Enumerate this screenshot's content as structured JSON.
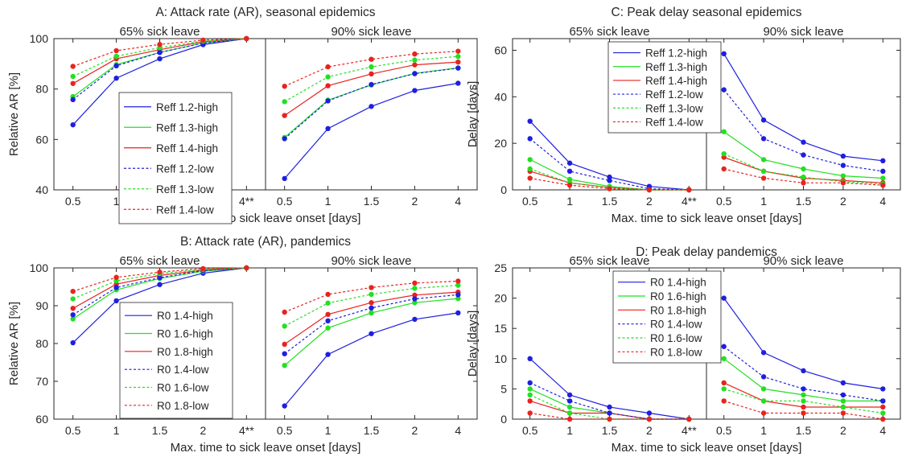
{
  "colors": {
    "blue": "#1f1fe0",
    "green": "#22e022",
    "red": "#e8231f"
  },
  "chart_data": [
    {
      "id": "A",
      "type": "line",
      "title": "A:  Attack rate (AR), seasonal epidemics",
      "xlabel": "Max. time to sick leave onset [days]",
      "ylabel": "Relative AR [%]",
      "ylim": [
        40,
        100
      ],
      "yticks": [
        "40",
        "60",
        "80",
        "100"
      ],
      "grid": false,
      "legend_position": "bottom-right of left panel",
      "panels": [
        {
          "label": "65% sick leave",
          "x_ticks": [
            "0.5",
            "1",
            "1.5",
            "2",
            "4**"
          ],
          "series": [
            {
              "name": "Reff 1.2-high",
              "color": "blue",
              "style": "solid",
              "values": [
                65.8,
                84.3,
                92.0,
                97.6,
                100
              ]
            },
            {
              "name": "Reff 1.3-high",
              "color": "green",
              "style": "solid",
              "values": [
                77.0,
                89.7,
                94.5,
                98.3,
                100
              ]
            },
            {
              "name": "Reff 1.4-high",
              "color": "red",
              "style": "solid",
              "values": [
                82.2,
                92.0,
                95.6,
                98.8,
                100
              ]
            },
            {
              "name": "Reff 1.2-low",
              "color": "blue",
              "style": "dashed",
              "values": [
                75.8,
                89.2,
                94.5,
                98.2,
                100
              ]
            },
            {
              "name": "Reff 1.3-low",
              "color": "green",
              "style": "dashed",
              "values": [
                85.0,
                93.0,
                96.4,
                99.0,
                100
              ]
            },
            {
              "name": "Reff 1.4-low",
              "color": "red",
              "style": "dashed",
              "values": [
                89.0,
                95.2,
                97.7,
                99.4,
                100
              ]
            }
          ]
        },
        {
          "label": "90% sick leave",
          "x_ticks": [
            "0.5",
            "1",
            "1.5",
            "2",
            "4"
          ],
          "series": [
            {
              "name": "Reff 1.2-high",
              "color": "blue",
              "style": "solid",
              "values": [
                44.5,
                64.3,
                73.1,
                79.4,
                82.3
              ]
            },
            {
              "name": "Reff 1.3-high",
              "color": "green",
              "style": "solid",
              "values": [
                60.8,
                75.6,
                81.6,
                86.2,
                88.4
              ]
            },
            {
              "name": "Reff 1.4-high",
              "color": "red",
              "style": "solid",
              "values": [
                69.5,
                81.3,
                86.0,
                89.6,
                90.7
              ]
            },
            {
              "name": "Reff 1.2-low",
              "color": "blue",
              "style": "dashed",
              "values": [
                60.3,
                75.3,
                81.8,
                86.1,
                88.3
              ]
            },
            {
              "name": "Reff 1.3-low",
              "color": "green",
              "style": "dashed",
              "values": [
                75.0,
                84.8,
                88.8,
                91.5,
                92.9
              ]
            },
            {
              "name": "Reff 1.4-low",
              "color": "red",
              "style": "dashed",
              "values": [
                81.1,
                88.8,
                91.8,
                93.9,
                95.0
              ]
            }
          ]
        }
      ]
    },
    {
      "id": "C",
      "type": "line",
      "title": "C:  Peak delay seasonal epidemics",
      "xlabel": "Max. time to sick leave onset [days]",
      "ylabel": "Delay [days]",
      "ylim": [
        0,
        65
      ],
      "yticks": [
        "0",
        "20",
        "40",
        "60"
      ],
      "grid": false,
      "legend_position": "top-right of left panel",
      "panels": [
        {
          "label": "65% sick leave",
          "x_ticks": [
            "0.5",
            "1",
            "1.5",
            "2",
            "4**"
          ],
          "series": [
            {
              "name": "Reff 1.2-high",
              "color": "blue",
              "style": "solid",
              "values": [
                29.5,
                11.5,
                5.5,
                1.5,
                0
              ]
            },
            {
              "name": "Reff 1.3-high",
              "color": "green",
              "style": "solid",
              "values": [
                13.0,
                4.5,
                1.5,
                0,
                0
              ]
            },
            {
              "name": "Reff 1.4-high",
              "color": "red",
              "style": "solid",
              "values": [
                8.0,
                3.0,
                1.0,
                0,
                0
              ]
            },
            {
              "name": "Reff 1.2-low",
              "color": "blue",
              "style": "dashed",
              "values": [
                22.0,
                8.0,
                4.0,
                0.5,
                0
              ]
            },
            {
              "name": "Reff 1.3-low",
              "color": "green",
              "style": "dashed",
              "values": [
                9.0,
                3.0,
                1.0,
                0,
                0
              ]
            },
            {
              "name": "Reff 1.4-low",
              "color": "red",
              "style": "dashed",
              "values": [
                5.0,
                2.0,
                0.5,
                0,
                0
              ]
            }
          ]
        },
        {
          "label": "90% sick leave",
          "x_ticks": [
            "0.5",
            "1",
            "1.5",
            "2",
            "4"
          ],
          "series": [
            {
              "name": "Reff 1.2-high",
              "color": "blue",
              "style": "solid",
              "values": [
                58.5,
                30.0,
                20.5,
                14.5,
                12.5
              ]
            },
            {
              "name": "Reff 1.3-high",
              "color": "green",
              "style": "solid",
              "values": [
                25.0,
                13.0,
                9.0,
                6.0,
                5.0
              ]
            },
            {
              "name": "Reff 1.4-high",
              "color": "red",
              "style": "solid",
              "values": [
                14.0,
                8.0,
                5.0,
                4.0,
                3.0
              ]
            },
            {
              "name": "Reff 1.2-low",
              "color": "blue",
              "style": "dashed",
              "values": [
                43.0,
                22.0,
                15.0,
                10.5,
                8.0
              ]
            },
            {
              "name": "Reff 1.3-low",
              "color": "green",
              "style": "dashed",
              "values": [
                15.5,
                8.0,
                5.5,
                3.5,
                2.5
              ]
            },
            {
              "name": "Reff 1.4-low",
              "color": "red",
              "style": "dashed",
              "values": [
                9.0,
                5.0,
                3.0,
                3.0,
                2.0
              ]
            }
          ]
        }
      ]
    },
    {
      "id": "B",
      "type": "line",
      "title": "B:  Attack rate (AR), pandemics",
      "xlabel": "Max. time to sick leave onset [days]",
      "ylabel": "Relative AR [%]",
      "ylim": [
        60,
        100
      ],
      "yticks": [
        "60",
        "70",
        "80",
        "90",
        "100"
      ],
      "grid": false,
      "legend_position": "bottom-right of left panel",
      "panels": [
        {
          "label": "65% sick leave",
          "x_ticks": [
            "0.5",
            "1",
            "1.5",
            "2",
            "4**"
          ],
          "series": [
            {
              "name": "R0 1.4-high",
              "color": "blue",
              "style": "solid",
              "values": [
                80.2,
                91.3,
                95.6,
                98.6,
                100
              ]
            },
            {
              "name": "R0 1.6-high",
              "color": "green",
              "style": "solid",
              "values": [
                86.5,
                94.2,
                97.2,
                99.1,
                100
              ]
            },
            {
              "name": "R0 1.8-high",
              "color": "red",
              "style": "solid",
              "values": [
                89.3,
                95.7,
                98.0,
                99.4,
                100
              ]
            },
            {
              "name": "R0 1.4-low",
              "color": "blue",
              "style": "dashed",
              "values": [
                87.6,
                94.8,
                97.4,
                99.3,
                100
              ]
            },
            {
              "name": "R0 1.6-low",
              "color": "green",
              "style": "dashed",
              "values": [
                91.8,
                96.6,
                98.5,
                99.6,
                100
              ]
            },
            {
              "name": "R0 1.8-low",
              "color": "red",
              "style": "dashed",
              "values": [
                93.8,
                97.5,
                98.9,
                99.8,
                100
              ]
            }
          ]
        },
        {
          "label": "90% sick leave",
          "x_ticks": [
            "0.5",
            "1",
            "1.5",
            "2",
            "4"
          ],
          "series": [
            {
              "name": "R0 1.4-high",
              "color": "blue",
              "style": "solid",
              "values": [
                63.5,
                77.1,
                82.6,
                86.4,
                88.1
              ]
            },
            {
              "name": "R0 1.6-high",
              "color": "green",
              "style": "solid",
              "values": [
                74.2,
                84.1,
                88.1,
                90.8,
                91.9
              ]
            },
            {
              "name": "R0 1.8-high",
              "color": "red",
              "style": "solid",
              "values": [
                79.8,
                87.7,
                90.8,
                92.8,
                93.6
              ]
            },
            {
              "name": "R0 1.4-low",
              "color": "blue",
              "style": "dashed",
              "values": [
                77.3,
                86.0,
                89.4,
                91.8,
                92.9
              ]
            },
            {
              "name": "R0 1.6-low",
              "color": "green",
              "style": "dashed",
              "values": [
                84.6,
                90.7,
                93.0,
                94.6,
                95.4
              ]
            },
            {
              "name": "R0 1.8-low",
              "color": "red",
              "style": "dashed",
              "values": [
                88.3,
                93.0,
                94.8,
                96.0,
                96.5
              ]
            }
          ]
        }
      ]
    },
    {
      "id": "D",
      "type": "line",
      "title": "D:  Peak delay pandemics",
      "xlabel": "Max. time to sick leave onset [days]",
      "ylabel": "Delay [days]",
      "ylim": [
        0,
        25
      ],
      "yticks": [
        "0",
        "5",
        "10",
        "15",
        "20",
        "25"
      ],
      "grid": false,
      "legend_position": "top-right of left panel",
      "panels": [
        {
          "label": "65% sick leave",
          "x_ticks": [
            "0.5",
            "1",
            "1.5",
            "2",
            "4**"
          ],
          "series": [
            {
              "name": "R0 1.4-high",
              "color": "blue",
              "style": "solid",
              "values": [
                10,
                4,
                2,
                1,
                0
              ]
            },
            {
              "name": "R0 1.6-high",
              "color": "green",
              "style": "solid",
              "values": [
                5,
                2,
                1,
                0,
                0
              ]
            },
            {
              "name": "R0 1.8-high",
              "color": "red",
              "style": "solid",
              "values": [
                3,
                1,
                1,
                0,
                0
              ]
            },
            {
              "name": "R0 1.4-low",
              "color": "blue",
              "style": "dashed",
              "values": [
                6,
                3,
                1,
                0,
                0
              ]
            },
            {
              "name": "R0 1.6-low",
              "color": "green",
              "style": "dashed",
              "values": [
                4,
                1,
                0,
                0,
                0
              ]
            },
            {
              "name": "R0 1.8-low",
              "color": "red",
              "style": "dashed",
              "values": [
                1,
                0,
                0,
                0,
                0
              ]
            }
          ]
        },
        {
          "label": "90% sick leave",
          "x_ticks": [
            "0.5",
            "1",
            "1.5",
            "2",
            "4"
          ],
          "series": [
            {
              "name": "R0 1.4-high",
              "color": "blue",
              "style": "solid",
              "values": [
                20,
                11,
                8,
                6,
                5
              ]
            },
            {
              "name": "R0 1.6-high",
              "color": "green",
              "style": "solid",
              "values": [
                10,
                5,
                4,
                3,
                3
              ]
            },
            {
              "name": "R0 1.8-high",
              "color": "red",
              "style": "solid",
              "values": [
                6,
                3,
                2,
                2,
                2
              ]
            },
            {
              "name": "R0 1.4-low",
              "color": "blue",
              "style": "dashed",
              "values": [
                12,
                7,
                5,
                4,
                3
              ]
            },
            {
              "name": "R0 1.6-low",
              "color": "green",
              "style": "dashed",
              "values": [
                5,
                3,
                3,
                2,
                1
              ]
            },
            {
              "name": "R0 1.8-low",
              "color": "red",
              "style": "dashed",
              "values": [
                3,
                1,
                1,
                1,
                0
              ]
            }
          ]
        }
      ]
    }
  ]
}
